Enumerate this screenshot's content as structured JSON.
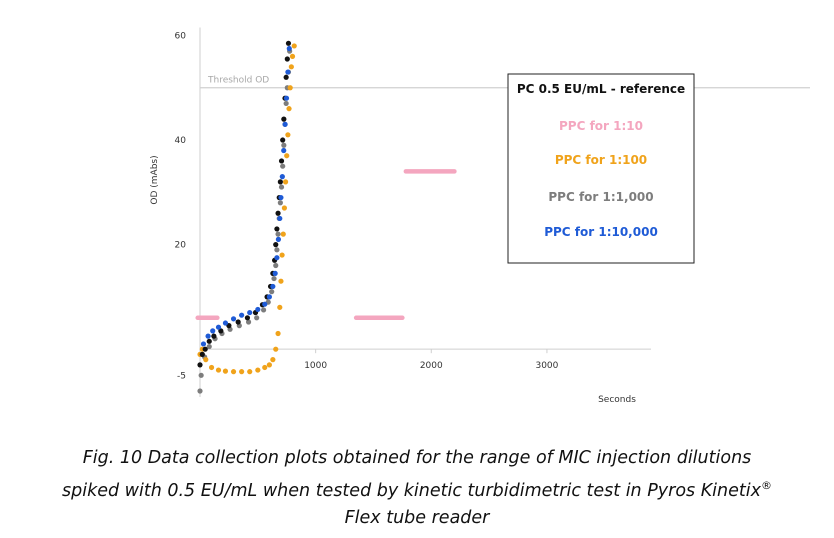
{
  "chart_data": {
    "type": "scatter",
    "title": "",
    "xlabel": "Seconds",
    "ylabel": "OD (mAbs)",
    "xlim": [
      0,
      3900
    ],
    "ylim": [
      -8,
      62
    ],
    "x_ticks": [
      1000,
      2000,
      3000
    ],
    "y_ticks": [
      -5,
      20,
      40,
      60
    ],
    "x_tick_labels": [
      "1000",
      "2000",
      "3000"
    ],
    "y_tick_labels": [
      "-5",
      "20",
      "40",
      "60"
    ],
    "grid": false,
    "legend_position": "top-right",
    "threshold": {
      "label": "Threshold OD",
      "value": 50,
      "color": "#d0d0d0"
    },
    "legend": [
      {
        "label": "PC 0.5 EU/mL - reference",
        "color": "#111111"
      },
      {
        "label": "PPC for 1:10",
        "color": "#f4a6bf"
      },
      {
        "label": "PPC for 1:100",
        "color": "#f0a31b"
      },
      {
        "label": "PPC for 1:1,000",
        "color": "#7d7d7d"
      },
      {
        "label": "PPC for 1:10,000",
        "color": "#1f5bd6"
      }
    ],
    "series": [
      {
        "name": "PC 0.5 EU/mL - reference",
        "color": "#111111",
        "x": [
          0,
          20,
          45,
          80,
          120,
          180,
          250,
          330,
          410,
          480,
          540,
          580,
          610,
          630,
          645,
          655,
          665,
          675,
          685,
          695,
          705,
          715,
          725,
          735,
          745,
          755,
          765
        ],
        "y": [
          -3,
          -1,
          0,
          1.5,
          2.5,
          3.5,
          4.5,
          5.2,
          6,
          7,
          8.5,
          10,
          12,
          14.5,
          17,
          20,
          23,
          26,
          29,
          32,
          36,
          40,
          44,
          48,
          52,
          55.5,
          58.5
        ]
      },
      {
        "name": "PPC for 1:10",
        "color": "#f4a6bf",
        "segments": [
          {
            "x": [
              -20,
              150
            ],
            "y": [
              6,
              6
            ]
          },
          {
            "x": [
              1350,
              1750
            ],
            "y": [
              6,
              6
            ]
          },
          {
            "x": [
              1780,
              2200
            ],
            "y": [
              34,
              34
            ]
          }
        ]
      },
      {
        "name": "PPC for 1:100",
        "color": "#f0a31b",
        "x": [
          0,
          20,
          50,
          100,
          160,
          220,
          290,
          360,
          430,
          500,
          560,
          600,
          630,
          655,
          675,
          690,
          700,
          710,
          720,
          730,
          740,
          750,
          760,
          770,
          780,
          790,
          800,
          815
        ],
        "y": [
          -1,
          0,
          -2,
          -3.5,
          -4,
          -4.2,
          -4.3,
          -4.3,
          -4.3,
          -4,
          -3.5,
          -3,
          -2,
          0,
          3,
          8,
          13,
          18,
          22,
          27,
          32,
          37,
          41,
          46,
          50,
          54,
          56,
          58
        ]
      },
      {
        "name": "PPC for 1:1,000",
        "color": "#7d7d7d",
        "x": [
          0,
          10,
          40,
          80,
          130,
          190,
          260,
          340,
          420,
          490,
          550,
          590,
          620,
          640,
          655,
          665,
          675,
          685,
          695,
          705,
          715,
          725,
          735,
          745,
          755,
          765,
          775
        ],
        "y": [
          -8,
          -5,
          -1.5,
          0.5,
          2,
          3,
          3.8,
          4.5,
          5.2,
          6,
          7.5,
          9,
          11,
          13.5,
          16,
          19,
          22,
          25,
          28,
          31,
          35,
          39,
          43,
          47,
          50,
          53,
          57
        ]
      },
      {
        "name": "PPC for 1:10,000",
        "color": "#1f5bd6",
        "x": [
          30,
          70,
          110,
          160,
          220,
          290,
          360,
          430,
          500,
          560,
          600,
          630,
          650,
          665,
          678,
          690,
          700,
          712,
          724,
          736,
          748,
          760,
          772
        ],
        "y": [
          1,
          2.5,
          3.5,
          4.2,
          5,
          5.8,
          6.5,
          7,
          7.6,
          8.6,
          10,
          12,
          14.5,
          17.5,
          21,
          25,
          29,
          33,
          38,
          43,
          48,
          53,
          57.5
        ]
      }
    ]
  },
  "caption": {
    "line1": "Fig. 10 Data collection plots obtained for the range of MIC injection dilutions",
    "line2": "spiked with 0.5 EU/mL when tested by kinetic turbidimetric test in Pyros Kinetix",
    "line2_sup": "®",
    "line3": "Flex tube reader"
  }
}
